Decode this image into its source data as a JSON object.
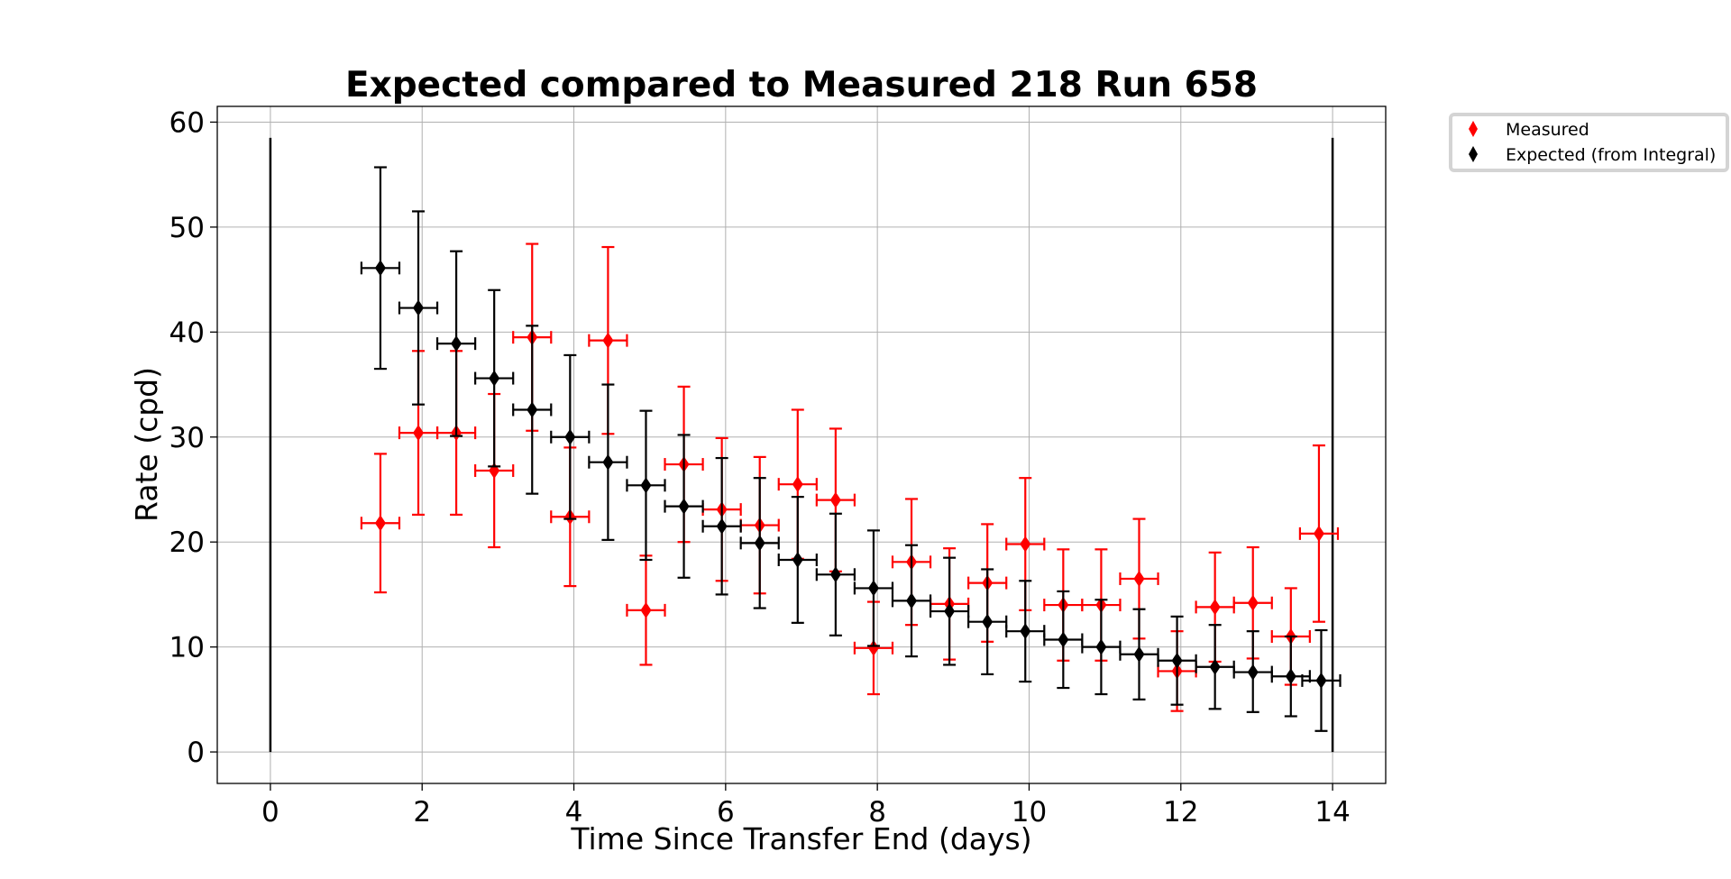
{
  "chart_data": {
    "type": "scatter",
    "title": "Expected compared to Measured 218 Run 658",
    "xlabel": "Time Since Transfer End (days)",
    "ylabel": "Rate (cpd)",
    "xlim": [
      -0.7,
      14.7
    ],
    "ylim": [
      -3,
      61.5
    ],
    "xticks": [
      0,
      2,
      4,
      6,
      8,
      10,
      12,
      14
    ],
    "yticks": [
      0,
      10,
      20,
      30,
      40,
      50,
      60
    ],
    "grid": true,
    "legend": "outside-top-right",
    "x_error_halfwidth": 0.25,
    "vertical_markers": [
      {
        "x": 0,
        "y_range": [
          0,
          58.5
        ],
        "color": "#000000"
      },
      {
        "x": 14,
        "y_range": [
          0,
          58.5
        ],
        "color": "#000000"
      }
    ],
    "series": [
      {
        "name": "Measured",
        "color": "#ff0000",
        "marker": "diamond",
        "points": [
          {
            "x": 1.45,
            "y": 21.8,
            "y_lo": 15.2,
            "y_hi": 28.4
          },
          {
            "x": 1.95,
            "y": 30.4,
            "y_lo": 22.6,
            "y_hi": 38.2
          },
          {
            "x": 2.45,
            "y": 30.4,
            "y_lo": 22.6,
            "y_hi": 38.2
          },
          {
            "x": 2.95,
            "y": 26.8,
            "y_lo": 19.5,
            "y_hi": 34.1
          },
          {
            "x": 3.45,
            "y": 39.5,
            "y_lo": 30.6,
            "y_hi": 48.4
          },
          {
            "x": 3.95,
            "y": 22.4,
            "y_lo": 15.8,
            "y_hi": 29.0
          },
          {
            "x": 4.45,
            "y": 39.2,
            "y_lo": 30.3,
            "y_hi": 48.1
          },
          {
            "x": 4.95,
            "y": 13.5,
            "y_lo": 8.3,
            "y_hi": 18.7
          },
          {
            "x": 5.45,
            "y": 27.4,
            "y_lo": 20.0,
            "y_hi": 34.8
          },
          {
            "x": 5.95,
            "y": 23.1,
            "y_lo": 16.3,
            "y_hi": 29.9
          },
          {
            "x": 6.45,
            "y": 21.6,
            "y_lo": 15.1,
            "y_hi": 28.1
          },
          {
            "x": 6.95,
            "y": 25.5,
            "y_lo": 18.4,
            "y_hi": 32.6
          },
          {
            "x": 7.45,
            "y": 24.0,
            "y_lo": 17.2,
            "y_hi": 30.8
          },
          {
            "x": 7.95,
            "y": 9.9,
            "y_lo": 5.5,
            "y_hi": 14.3
          },
          {
            "x": 8.45,
            "y": 18.1,
            "y_lo": 12.1,
            "y_hi": 24.1
          },
          {
            "x": 8.95,
            "y": 14.1,
            "y_lo": 8.8,
            "y_hi": 19.4
          },
          {
            "x": 9.45,
            "y": 16.1,
            "y_lo": 10.5,
            "y_hi": 21.7
          },
          {
            "x": 9.95,
            "y": 19.8,
            "y_lo": 13.5,
            "y_hi": 26.1
          },
          {
            "x": 10.45,
            "y": 14.0,
            "y_lo": 8.7,
            "y_hi": 19.3
          },
          {
            "x": 10.95,
            "y": 14.0,
            "y_lo": 8.7,
            "y_hi": 19.3
          },
          {
            "x": 11.45,
            "y": 16.5,
            "y_lo": 10.8,
            "y_hi": 22.2
          },
          {
            "x": 11.95,
            "y": 7.7,
            "y_lo": 3.9,
            "y_hi": 11.5
          },
          {
            "x": 12.45,
            "y": 13.8,
            "y_lo": 8.6,
            "y_hi": 19.0
          },
          {
            "x": 12.95,
            "y": 14.2,
            "y_lo": 8.9,
            "y_hi": 19.5
          },
          {
            "x": 13.45,
            "y": 11.0,
            "y_lo": 6.4,
            "y_hi": 15.6
          },
          {
            "x": 13.82,
            "y": 20.8,
            "y_lo": 12.4,
            "y_hi": 29.2
          }
        ]
      },
      {
        "name": "Expected (from Integral)",
        "color": "#000000",
        "marker": "diamond",
        "points": [
          {
            "x": 1.45,
            "y": 46.1,
            "y_lo": 36.5,
            "y_hi": 55.7
          },
          {
            "x": 1.95,
            "y": 42.3,
            "y_lo": 33.1,
            "y_hi": 51.5
          },
          {
            "x": 2.45,
            "y": 38.9,
            "y_lo": 30.1,
            "y_hi": 47.7
          },
          {
            "x": 2.95,
            "y": 35.6,
            "y_lo": 27.2,
            "y_hi": 44.0
          },
          {
            "x": 3.45,
            "y": 32.6,
            "y_lo": 24.6,
            "y_hi": 40.6
          },
          {
            "x": 3.95,
            "y": 30.0,
            "y_lo": 22.2,
            "y_hi": 37.8
          },
          {
            "x": 4.45,
            "y": 27.6,
            "y_lo": 20.2,
            "y_hi": 35.0
          },
          {
            "x": 4.95,
            "y": 25.4,
            "y_lo": 18.3,
            "y_hi": 32.5
          },
          {
            "x": 5.45,
            "y": 23.4,
            "y_lo": 16.6,
            "y_hi": 30.2
          },
          {
            "x": 5.95,
            "y": 21.5,
            "y_lo": 15.0,
            "y_hi": 28.0
          },
          {
            "x": 6.45,
            "y": 19.9,
            "y_lo": 13.7,
            "y_hi": 26.1
          },
          {
            "x": 6.95,
            "y": 18.3,
            "y_lo": 12.3,
            "y_hi": 24.3
          },
          {
            "x": 7.45,
            "y": 16.9,
            "y_lo": 11.1,
            "y_hi": 22.7
          },
          {
            "x": 7.95,
            "y": 15.6,
            "y_lo": 10.1,
            "y_hi": 21.1
          },
          {
            "x": 8.45,
            "y": 14.4,
            "y_lo": 9.1,
            "y_hi": 19.7
          },
          {
            "x": 8.95,
            "y": 13.4,
            "y_lo": 8.3,
            "y_hi": 18.5
          },
          {
            "x": 9.45,
            "y": 12.4,
            "y_lo": 7.4,
            "y_hi": 17.4
          },
          {
            "x": 9.95,
            "y": 11.5,
            "y_lo": 6.7,
            "y_hi": 16.3
          },
          {
            "x": 10.45,
            "y": 10.7,
            "y_lo": 6.1,
            "y_hi": 15.3
          },
          {
            "x": 10.95,
            "y": 10.0,
            "y_lo": 5.5,
            "y_hi": 14.5
          },
          {
            "x": 11.45,
            "y": 9.3,
            "y_lo": 5.0,
            "y_hi": 13.6
          },
          {
            "x": 11.95,
            "y": 8.7,
            "y_lo": 4.5,
            "y_hi": 12.9
          },
          {
            "x": 12.45,
            "y": 8.1,
            "y_lo": 4.1,
            "y_hi": 12.1
          },
          {
            "x": 12.95,
            "y": 7.6,
            "y_lo": 3.8,
            "y_hi": 11.5
          },
          {
            "x": 13.45,
            "y": 7.2,
            "y_lo": 3.4,
            "y_hi": 11.0
          },
          {
            "x": 13.85,
            "y": 6.8,
            "y_lo": 2.0,
            "y_hi": 11.6
          }
        ]
      }
    ]
  }
}
